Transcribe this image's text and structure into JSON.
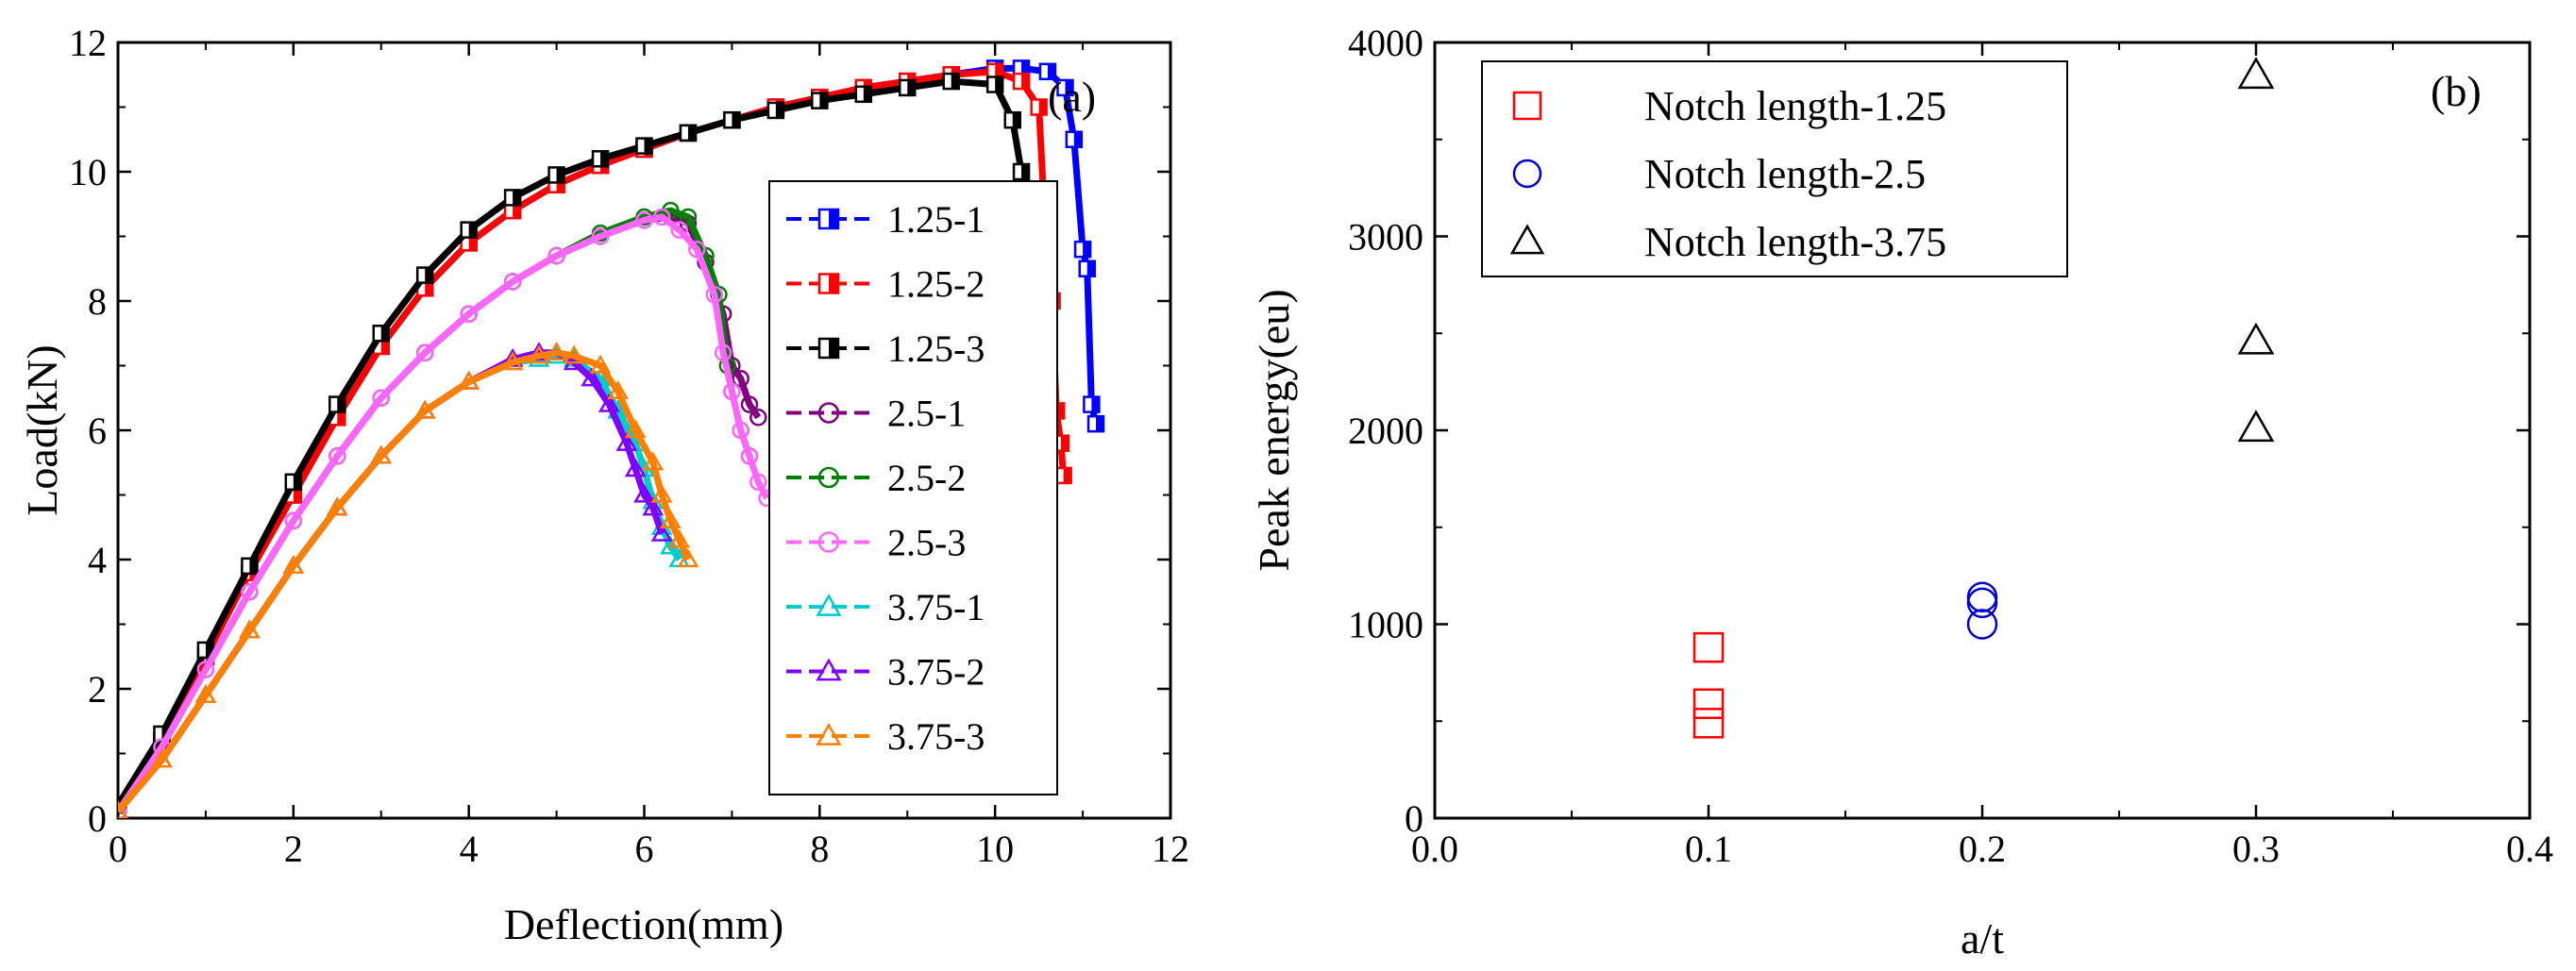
{
  "chart_data": [
    {
      "panel": "(a)",
      "type": "line",
      "xlabel": "Deflection(mm)",
      "ylabel": "Load(kN)",
      "xlim": [
        0,
        12
      ],
      "ylim": [
        0,
        12
      ],
      "xticks": [
        0,
        2,
        4,
        6,
        8,
        10,
        12
      ],
      "yticks": [
        0,
        2,
        4,
        6,
        8,
        10,
        12
      ],
      "legend_position": "right",
      "series": [
        {
          "name": "1.25-1",
          "color": "#0000ff",
          "marker": "half-square",
          "x": [
            0,
            0.5,
            1,
            1.5,
            2,
            2.5,
            3,
            3.5,
            4,
            4.5,
            5,
            5.5,
            6,
            6.5,
            7,
            7.5,
            8,
            8.5,
            9,
            9.5,
            10,
            10.3,
            10.6,
            10.8,
            10.9,
            11.0,
            11.05,
            11.1,
            11.15
          ],
          "y": [
            0.2,
            1.2,
            2.5,
            3.8,
            5.0,
            6.2,
            7.3,
            8.2,
            8.9,
            9.4,
            9.8,
            10.1,
            10.35,
            10.6,
            10.8,
            11.0,
            11.15,
            11.3,
            11.4,
            11.5,
            11.6,
            11.6,
            11.55,
            11.3,
            10.5,
            8.8,
            8.5,
            6.4,
            6.1
          ]
        },
        {
          "name": "1.25-2",
          "color": "#ff0000",
          "marker": "half-square",
          "x": [
            0,
            0.5,
            1,
            1.5,
            2,
            2.5,
            3,
            3.5,
            4,
            4.5,
            5,
            5.5,
            6,
            6.5,
            7,
            7.5,
            8,
            8.5,
            9,
            9.5,
            10,
            10.3,
            10.5,
            10.6,
            10.65,
            10.7,
            10.75,
            10.78
          ],
          "y": [
            0.2,
            1.2,
            2.5,
            3.8,
            5.0,
            6.2,
            7.3,
            8.2,
            8.9,
            9.4,
            9.8,
            10.1,
            10.35,
            10.6,
            10.8,
            11.0,
            11.15,
            11.3,
            11.4,
            11.5,
            11.55,
            11.4,
            11.0,
            8.4,
            8.0,
            6.3,
            5.8,
            5.3
          ]
        },
        {
          "name": "1.25-3",
          "color": "#000000",
          "marker": "half-square",
          "x": [
            0,
            0.5,
            1,
            1.5,
            2,
            2.5,
            3,
            3.5,
            4,
            4.5,
            5,
            5.5,
            6,
            6.5,
            7,
            7.5,
            8,
            8.5,
            9,
            9.5,
            10,
            10.2,
            10.3,
            10.4,
            10.45,
            10.5,
            10.55,
            10.6
          ],
          "y": [
            0.2,
            1.3,
            2.6,
            3.9,
            5.2,
            6.4,
            7.5,
            8.4,
            9.1,
            9.6,
            9.95,
            10.2,
            10.4,
            10.6,
            10.8,
            10.95,
            11.1,
            11.2,
            11.3,
            11.4,
            11.35,
            10.8,
            10.0,
            8.2,
            8.0,
            6.4,
            6.2,
            5.3
          ]
        },
        {
          "name": "2.5-1",
          "color": "#800080",
          "marker": "circle",
          "x": [
            0,
            0.5,
            1,
            1.5,
            2,
            2.5,
            3,
            3.5,
            4,
            4.5,
            5,
            5.5,
            6,
            6.3,
            6.5,
            6.7,
            6.9,
            7.0,
            7.1,
            7.2,
            7.3
          ],
          "y": [
            0.1,
            1.1,
            2.3,
            3.5,
            4.6,
            5.6,
            6.5,
            7.2,
            7.8,
            8.3,
            8.7,
            9.0,
            9.25,
            9.3,
            9.2,
            8.6,
            7.8,
            7.0,
            6.8,
            6.4,
            6.2
          ]
        },
        {
          "name": "2.5-2",
          "color": "#008000",
          "marker": "circle",
          "x": [
            0,
            0.5,
            1,
            1.5,
            2,
            2.5,
            3,
            3.5,
            4,
            4.5,
            5,
            5.5,
            6,
            6.3,
            6.5,
            6.7,
            6.85,
            6.95,
            7.0,
            7.1,
            7.2
          ],
          "y": [
            0.1,
            1.1,
            2.3,
            3.5,
            4.6,
            5.6,
            6.5,
            7.2,
            7.8,
            8.3,
            8.7,
            9.05,
            9.3,
            9.4,
            9.3,
            8.7,
            8.1,
            7.0,
            6.6,
            6.0,
            5.6
          ]
        },
        {
          "name": "2.5-3",
          "color": "#ff66ff",
          "marker": "circle",
          "x": [
            0,
            0.5,
            1,
            1.5,
            2,
            2.5,
            3,
            3.5,
            4,
            4.5,
            5,
            5.5,
            6,
            6.2,
            6.4,
            6.6,
            6.8,
            6.9,
            7.0,
            7.1,
            7.2,
            7.3,
            7.4
          ],
          "y": [
            0.1,
            1.1,
            2.3,
            3.5,
            4.6,
            5.6,
            6.5,
            7.2,
            7.8,
            8.3,
            8.7,
            9.0,
            9.25,
            9.3,
            9.1,
            8.8,
            8.1,
            7.2,
            6.6,
            6.0,
            5.6,
            5.2,
            4.95
          ]
        },
        {
          "name": "3.75-1",
          "color": "#00cccc",
          "marker": "triangle",
          "x": [
            0,
            0.5,
            1,
            1.5,
            2,
            2.5,
            3,
            3.5,
            4,
            4.5,
            4.8,
            5.0,
            5.2,
            5.5,
            5.7,
            5.9,
            6.0,
            6.1,
            6.2,
            6.3,
            6.4
          ],
          "y": [
            0.1,
            0.9,
            1.9,
            2.9,
            3.9,
            4.8,
            5.6,
            6.3,
            6.75,
            7.05,
            7.1,
            7.15,
            7.1,
            6.8,
            6.3,
            5.8,
            5.4,
            4.9,
            4.5,
            4.2,
            4.0
          ]
        },
        {
          "name": "3.75-2",
          "color": "#8000ff",
          "marker": "triangle",
          "x": [
            0,
            0.5,
            1,
            1.5,
            2,
            2.5,
            3,
            3.5,
            4,
            4.5,
            4.8,
            5.0,
            5.2,
            5.4,
            5.6,
            5.8,
            5.9,
            6.0,
            6.1,
            6.2
          ],
          "y": [
            0.1,
            0.9,
            1.9,
            2.9,
            3.9,
            4.8,
            5.6,
            6.3,
            6.75,
            7.1,
            7.2,
            7.2,
            7.05,
            6.8,
            6.4,
            5.8,
            5.4,
            5.0,
            4.8,
            4.4
          ]
        },
        {
          "name": "3.75-3",
          "color": "#ff8000",
          "marker": "triangle",
          "x": [
            0,
            0.5,
            1,
            1.5,
            2,
            2.5,
            3,
            3.5,
            4,
            4.5,
            4.8,
            5.0,
            5.2,
            5.5,
            5.7,
            5.9,
            6.1,
            6.2,
            6.3,
            6.4,
            6.5
          ],
          "y": [
            0.1,
            0.9,
            1.9,
            2.9,
            3.9,
            4.8,
            5.6,
            6.3,
            6.75,
            7.05,
            7.15,
            7.2,
            7.15,
            7.0,
            6.6,
            6.0,
            5.5,
            5.0,
            4.6,
            4.3,
            4.0
          ]
        }
      ]
    },
    {
      "panel": "(b)",
      "type": "scatter",
      "xlabel": "a/t",
      "ylabel": "Peak energy(eu)",
      "xlim": [
        0.0,
        0.4
      ],
      "ylim": [
        0,
        4000
      ],
      "xticks": [
        0.0,
        0.1,
        0.2,
        0.3,
        0.4
      ],
      "xtick_labels": [
        "0.0",
        "0.1",
        "0.2",
        "0.3",
        "0.4"
      ],
      "yticks": [
        0,
        1000,
        2000,
        3000,
        4000
      ],
      "legend_position": "top-left",
      "series": [
        {
          "name": "Notch length-1.25",
          "color": "#ff0000",
          "marker": "square",
          "x": [
            0.1,
            0.1,
            0.1
          ],
          "y": [
            880,
            590,
            490
          ]
        },
        {
          "name": "Notch length-2.5",
          "color": "#0000cc",
          "marker": "circle",
          "x": [
            0.2,
            0.2,
            0.2
          ],
          "y": [
            1140,
            1110,
            1000
          ]
        },
        {
          "name": "Notch length-3.75",
          "color": "#000000",
          "marker": "triangle",
          "x": [
            0.3,
            0.3,
            0.3
          ],
          "y": [
            3830,
            2460,
            2010
          ]
        }
      ]
    }
  ]
}
